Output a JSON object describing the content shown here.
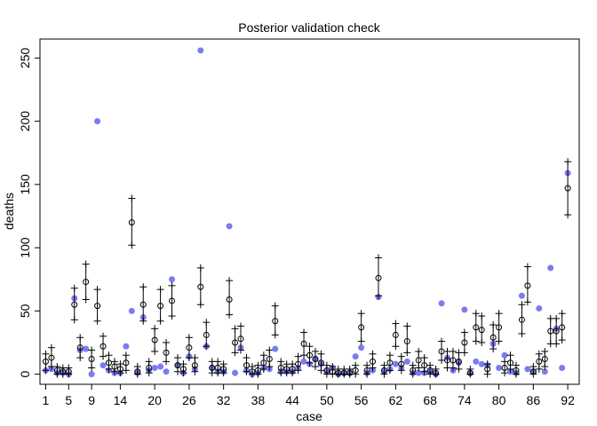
{
  "chart_data": {
    "type": "scatter",
    "title": "Posterior validation check",
    "xlabel": "case",
    "ylabel": "deaths",
    "xlim": [
      0,
      94
    ],
    "ylim": [
      -8,
      265
    ],
    "x_ticks": [
      1,
      5,
      9,
      14,
      20,
      26,
      32,
      38,
      44,
      50,
      56,
      62,
      68,
      74,
      80,
      86,
      92
    ],
    "y_ticks": [
      0,
      50,
      100,
      150,
      200,
      250
    ],
    "colors": {
      "observed": "#7b7bf2",
      "predicted": "#000000"
    },
    "series": [
      {
        "name": "observed deaths",
        "values": [
          3,
          4,
          1,
          1,
          0,
          60,
          19,
          20,
          0,
          200,
          7,
          3,
          1,
          1,
          22,
          50,
          1,
          45,
          3,
          5,
          6,
          2,
          75,
          7,
          1,
          14,
          4,
          256,
          22,
          5,
          2,
          2,
          117,
          1,
          21,
          3,
          0,
          1,
          5,
          4,
          20,
          2,
          2,
          2,
          5,
          10,
          8,
          12,
          8,
          2,
          5,
          0,
          1,
          1,
          14,
          21,
          1,
          3,
          61,
          2,
          4,
          8,
          5,
          10,
          1,
          1,
          1,
          2,
          0,
          56,
          13,
          3,
          9,
          51,
          1,
          10,
          8,
          7,
          24,
          5,
          15,
          2,
          1,
          62,
          4,
          2,
          52,
          2,
          84,
          36,
          5,
          159
        ]
      },
      {
        "name": "posterior mean",
        "values": [
          10,
          13,
          3,
          2,
          2,
          55,
          21,
          73,
          12,
          54,
          22,
          9,
          6,
          4,
          9,
          120,
          2,
          55,
          5,
          27,
          54,
          17,
          58,
          7,
          4,
          21,
          7,
          69,
          31,
          5,
          5,
          4,
          59,
          25,
          28,
          7,
          2,
          3,
          9,
          12,
          42,
          5,
          4,
          4,
          8,
          24,
          15,
          12,
          9,
          3,
          2,
          1,
          1,
          1,
          3,
          37,
          3,
          10,
          76,
          3,
          9,
          31,
          8,
          26,
          3,
          11,
          7,
          3,
          1,
          18,
          11,
          11,
          10,
          25,
          1,
          37,
          35,
          4,
          29,
          37,
          5,
          9,
          3,
          43,
          70,
          2,
          10,
          12,
          34,
          34,
          37,
          147
        ]
      },
      {
        "name": "interval lower",
        "values": [
          3,
          6,
          0,
          0,
          0,
          43,
          13,
          59,
          5,
          42,
          14,
          4,
          2,
          1,
          3,
          102,
          0,
          42,
          1,
          18,
          42,
          10,
          46,
          2,
          1,
          13,
          2,
          55,
          22,
          1,
          1,
          1,
          47,
          17,
          19,
          2,
          0,
          0,
          4,
          6,
          31,
          1,
          1,
          1,
          3,
          15,
          9,
          6,
          3,
          0,
          0,
          0,
          0,
          0,
          0,
          26,
          0,
          5,
          62,
          0,
          3,
          22,
          3,
          17,
          0,
          5,
          2,
          0,
          0,
          11,
          5,
          5,
          4,
          17,
          0,
          26,
          25,
          0,
          20,
          26,
          1,
          4,
          0,
          32,
          57,
          0,
          4,
          6,
          24,
          24,
          27,
          126
        ]
      },
      {
        "name": "interval upper",
        "values": [
          16,
          21,
          6,
          5,
          5,
          68,
          29,
          87,
          19,
          67,
          30,
          15,
          10,
          8,
          15,
          139,
          6,
          69,
          10,
          36,
          67,
          25,
          70,
          13,
          8,
          29,
          13,
          84,
          41,
          10,
          10,
          8,
          74,
          36,
          38,
          13,
          6,
          7,
          15,
          19,
          54,
          10,
          8,
          8,
          14,
          33,
          22,
          18,
          16,
          7,
          6,
          4,
          4,
          4,
          7,
          48,
          7,
          16,
          92,
          7,
          15,
          40,
          14,
          38,
          7,
          18,
          13,
          7,
          4,
          26,
          18,
          18,
          17,
          33,
          4,
          48,
          46,
          8,
          39,
          48,
          10,
          15,
          7,
          55,
          85,
          6,
          16,
          18,
          44,
          44,
          48,
          168
        ]
      }
    ]
  }
}
